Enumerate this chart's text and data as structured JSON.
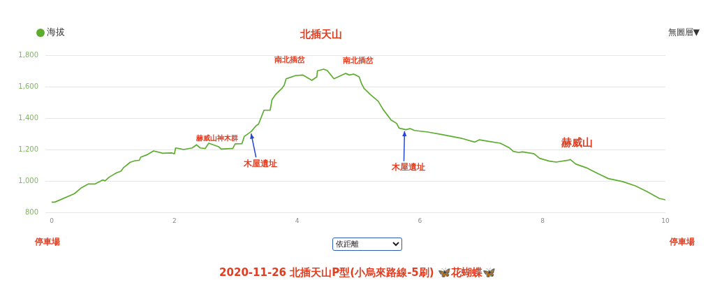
{
  "chart_data": {
    "type": "line",
    "title": "2020-11-26 北插天山P型(小烏來路線-5刷) 🦋花蝴蝶🦋",
    "x": [
      0,
      0.05,
      0.37,
      0.49,
      0.6,
      0.71,
      0.83,
      0.87,
      0.94,
      1.06,
      1.13,
      1.17,
      1.28,
      1.36,
      1.43,
      1.45,
      1.55,
      1.66,
      1.81,
      1.96,
      2.0,
      2.02,
      2.15,
      2.29,
      2.36,
      2.42,
      2.5,
      2.56,
      2.72,
      2.76,
      2.91,
      2.95,
      2.99,
      3.1,
      3.14,
      3.25,
      3.33,
      3.37,
      3.46,
      3.56,
      3.59,
      3.65,
      3.75,
      3.79,
      3.82,
      3.86,
      3.97,
      4.09,
      4.24,
      4.32,
      4.33,
      4.43,
      4.49,
      4.6,
      4.79,
      4.85,
      4.92,
      5.01,
      5.05,
      5.09,
      5.19,
      5.32,
      5.4,
      5.53,
      5.62,
      5.66,
      5.77,
      5.84,
      5.91,
      6.13,
      6.36,
      6.67,
      6.89,
      6.97,
      7.12,
      7.31,
      7.46,
      7.52,
      7.61,
      7.67,
      7.86,
      7.95,
      8.11,
      8.22,
      8.43,
      8.45,
      8.54,
      8.71,
      8.9,
      9.07,
      9.3,
      9.51,
      9.7,
      9.9,
      10.0
    ],
    "series": [
      {
        "name": "海拔",
        "color": "#5cad2f",
        "values": [
          865,
          865,
          919,
          958,
          981,
          981,
          1006,
          1001,
          1025,
          1052,
          1062,
          1084,
          1119,
          1129,
          1132,
          1151,
          1166,
          1191,
          1176,
          1178,
          1173,
          1210,
          1200,
          1210,
          1230,
          1210,
          1206,
          1240,
          1218,
          1203,
          1206,
          1206,
          1236,
          1237,
          1284,
          1314,
          1351,
          1361,
          1450,
          1450,
          1517,
          1551,
          1588,
          1610,
          1650,
          1655,
          1670,
          1674,
          1640,
          1662,
          1700,
          1711,
          1702,
          1650,
          1684,
          1674,
          1680,
          1662,
          1618,
          1588,
          1551,
          1507,
          1455,
          1388,
          1366,
          1336,
          1326,
          1333,
          1321,
          1311,
          1295,
          1272,
          1247,
          1262,
          1252,
          1240,
          1210,
          1188,
          1181,
          1185,
          1173,
          1144,
          1126,
          1120,
          1133,
          1136,
          1107,
          1084,
          1047,
          1015,
          996,
          969,
          932,
          889,
          880
        ]
      }
    ],
    "xlim": [
      0,
      10
    ],
    "xticks": [
      0,
      2,
      4,
      6,
      8,
      10
    ],
    "ylim": [
      800,
      1800
    ],
    "yticks": [
      {
        "value": 800,
        "label": "800"
      },
      {
        "value": 1000,
        "label": "1,000"
      },
      {
        "value": 1200,
        "label": "1,200"
      },
      {
        "value": 1400,
        "label": "1,400"
      },
      {
        "value": 1600,
        "label": "1,600"
      },
      {
        "value": 1800,
        "label": "1,800"
      }
    ],
    "grid": "y",
    "legend": "top left",
    "annotations": [
      {
        "text": "北插天山",
        "x": 4.43,
        "y": 1711
      },
      {
        "text": "南北插岔",
        "x": 3.86,
        "y": 1655
      },
      {
        "text": "南北插岔",
        "x": 4.97,
        "y": 1670
      },
      {
        "text": "赫威山神木群",
        "x": 2.8,
        "y": 1206
      },
      {
        "text": "木屋遺址",
        "x": 3.25,
        "y": 1310
      },
      {
        "text": "木屋遺址",
        "x": 5.75,
        "y": 1326
      },
      {
        "text": "赫威山",
        "x": 8.45,
        "y": 1136
      },
      "停車場",
      "停車場",
      "無圖層▼",
      "依距離"
    ]
  }
}
